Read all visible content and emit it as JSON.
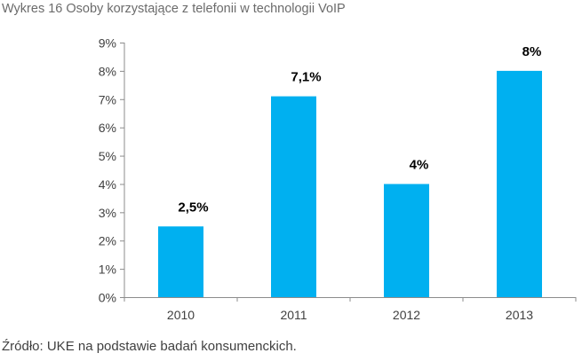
{
  "chart_data": {
    "type": "bar",
    "title": "Wykres 16 Osoby korzystające z telefonii w technologii VoIP",
    "categories": [
      "2010",
      "2011",
      "2012",
      "2013"
    ],
    "values": [
      2.5,
      7.1,
      4,
      8
    ],
    "data_labels": [
      "2,5%",
      "7,1%",
      "4%",
      "8%"
    ],
    "ylim": [
      0,
      9
    ],
    "yticks": [
      0,
      1,
      2,
      3,
      4,
      5,
      6,
      7,
      8,
      9
    ],
    "ytick_labels": [
      "0%",
      "1%",
      "2%",
      "3%",
      "4%",
      "5%",
      "6%",
      "7%",
      "8%",
      "9%"
    ],
    "xlabel": "",
    "ylabel": "",
    "grid": false,
    "legend": "none",
    "bar_color": "#00b0f0",
    "axis_color": "#8c8c8c",
    "source": "Źródło: UKE na podstawie badań konsumenckich."
  }
}
